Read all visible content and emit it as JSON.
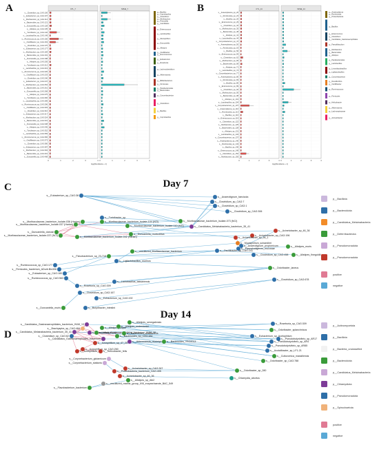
{
  "figure": {
    "panels": [
      {
        "letter": "A"
      },
      {
        "letter": "B"
      },
      {
        "letter": "C",
        "title": "Day 7"
      },
      {
        "letter": "D",
        "title": "Day 14"
      }
    ]
  },
  "panel_a": {
    "strip_left": "CTL_7",
    "strip_right": "SPHE_7",
    "xlabel": "log(Abundance + 1)",
    "legend": [
      "g__Bacillus",
      "g__Coprobacillus",
      "g__Clostridium",
      "g__Muribaculum",
      "g__Prevotella",
      "g__Candidatus",
      "g__Enterococcus",
      "g__Lactobacillus",
      "g__Mucispirillum",
      "g__Duncaniella",
      "g__Alistipes",
      "g__Oscillibacter",
      "g__Ruminococcus",
      "g__Eubacterium",
      "g__Roseburia",
      "g__Lachnoclostridium",
      "g__Akkermansia",
      "g__Bifidobacterium",
      "g__Firmicutes",
      "g__Parabacteroides",
      "g__Bacteroides",
      "g__Corynebacterium",
      "g__Clostridium"
    ]
  },
  "panel_b": {
    "strip_left": "CTL_14",
    "strip_right": "SPHE_14",
    "xlabel": "log(Abundance + 1)",
    "legend": [
      "g__Anaeroplasma",
      "g__Romboutsia",
      "g__Proteobacteria",
      "g__Bacillus",
      "g__Enterococcus",
      "g__Clostridium",
      "g__Candidatus_Gastranaerophilales",
      "g__Faecalibaculum",
      "g__Muribaculum",
      "g__Bacteroides",
      "g__Alistipes",
      "g__Parabacteroides",
      "g__Lactobacillus",
      "g__Limosilactobacillus",
      "g__Ligilactobacillus",
      "g__Corynebacterium",
      "g__Desulfovibrio",
      "g__Oscillibacter",
      "g__Ruminococcus",
      "g__Firmicutes",
      "g__Helicobacter",
      "g__Akkermansia",
      "g__Lachnospiraceae",
      "g__Acinetobacter"
    ]
  },
  "panel_c": {
    "nodes": [
      {
        "id": "c1",
        "label": "s__Eubacterium_sp_CAG:38",
        "phylum": "Firmicutes"
      },
      {
        "id": "c2",
        "label": "s__Anaerotignum_faecicola",
        "phylum": "Firmicutes"
      },
      {
        "id": "c3",
        "label": "s__Clostridium_sp_CAG:7",
        "phylum": "Bacillota"
      },
      {
        "id": "c4",
        "label": "s__Clostridium_sp_CAG:1",
        "phylum": "Bacillota"
      },
      {
        "id": "c5",
        "label": "s__Clostridium_sp_CAG:306",
        "phylum": "Bacillota"
      },
      {
        "id": "c6",
        "label": "s__Turicibacter_sp.",
        "phylum": "Bacillota"
      },
      {
        "id": "c7",
        "label": "s__Muribaculaceae_bacterium_Isolate-036 (Harlan)",
        "phylum": "Bacteroidota"
      },
      {
        "id": "c8",
        "label": "s__Muribaculaceae_bacterium_Isolate-104 (HZI)",
        "phylum": "Bacteroidota"
      },
      {
        "id": "c9",
        "label": "s__Muribaculaceae_bacterium_Isolate-037 (Harlan)",
        "phylum": "Bacteroidota"
      },
      {
        "id": "c10",
        "label": "s__Muribaculaceae_bacterium_Isolate-073 (NCI)",
        "phylum": "Bacteroidota"
      },
      {
        "id": "c11",
        "label": "s__Muribaculaceae_bacterium_Isolate-110 (HZI)",
        "phylum": "Bacteroidota"
      },
      {
        "id": "c12",
        "label": "s__Muribaculaceae_bacterium_Isolate-037 (NCI)",
        "phylum": "Bacteroidota"
      },
      {
        "id": "c13",
        "label": "s__Duncaniella_dubosii",
        "phylum": "Bacteroidota"
      },
      {
        "id": "c14",
        "label": "s__Duncaniella_muricolitica",
        "phylum": "Bacteroidota"
      },
      {
        "id": "c15",
        "label": "s__Muribaculaceae_bacterium_Isolate-042 (Harlan)",
        "phylum": "Bacteroidota"
      },
      {
        "id": "c16",
        "label": "s__Candidatus_Melainabacteria_bacterium_35_41",
        "phylum": "Candidatus_Melainabacteria"
      },
      {
        "id": "c17",
        "label": "s__Acinetobacter_sp_46_36",
        "phylum": "Pseudomonadota"
      },
      {
        "id": "c18",
        "label": "s__Acinetobacter_sp_CAG:196",
        "phylum": "Pseudomonadota"
      },
      {
        "id": "c19",
        "label": "s__Acinetobacter_sp_56_1",
        "phylum": "Pseudomonadota"
      },
      {
        "id": "c20",
        "label": "s__Mucispirillum_schaedleri",
        "phylum": "Deferribacterota"
      },
      {
        "id": "c21",
        "label": "s__Anaerotignum_propionicum",
        "phylum": "Bacillota"
      },
      {
        "id": "c22",
        "label": "s__Alistipes_muris",
        "phylum": "Bacteroidota"
      },
      {
        "id": "c23",
        "label": "s__Paenalcaligenes_mucosae",
        "phylum": "Bacillota"
      },
      {
        "id": "c24",
        "label": "s__uncultured_Muribaculaceae_bacterium",
        "phylum": "Bacteroidota"
      },
      {
        "id": "c25",
        "label": "s__Oscillibacter_sp_CAG:241",
        "phylum": "Bacillota"
      },
      {
        "id": "c26",
        "label": "s__Clostridium_sp_CAG:458",
        "phylum": "Bacillota"
      },
      {
        "id": "c27",
        "label": "s__Alistipes_finegoldii",
        "phylum": "Bacteroidota"
      },
      {
        "id": "c28",
        "label": "s__Flavobacterium_sp_23-718",
        "phylum": "Bacteroidota"
      },
      {
        "id": "c29",
        "label": "s__Ligilactobacillus_murinus",
        "phylum": "Bacillota"
      },
      {
        "id": "c30",
        "label": "s__Ruminococcus_sp_CAG:177",
        "phylum": "Bacillota"
      },
      {
        "id": "c31",
        "label": "s__Firmicutes_bacterium_ADurb.Bin306",
        "phylum": "Bacillota"
      },
      {
        "id": "c32",
        "label": "s__Eubacterium_sp_CAG:180",
        "phylum": "Bacillota"
      },
      {
        "id": "c33",
        "label": "s__Ruminococcus_sp_CAG:563",
        "phylum": "Bacillota"
      },
      {
        "id": "c34",
        "label": "s__Lactobacillus_taiwanensis",
        "phylum": "Bacillota"
      },
      {
        "id": "c35",
        "label": "s__Roseburia_sp_CAG:309",
        "phylum": "Bacillota"
      },
      {
        "id": "c36",
        "label": "s__Clostridium_sp_CAG:167",
        "phylum": "Bacillota"
      },
      {
        "id": "c37",
        "label": "s__Eubacterium_sp_CAG:192",
        "phylum": "Bacillota"
      },
      {
        "id": "c38",
        "label": "s__Duncaniella_muris",
        "phylum": "Bacteroidota"
      },
      {
        "id": "c39",
        "label": "s__Butyribacter_intestini",
        "phylum": "Bacillota"
      },
      {
        "id": "c40",
        "label": "s__Odoribacter_laneus",
        "phylum": "Bacteroidota"
      },
      {
        "id": "c41",
        "label": "s__Clostridium_sp_CAG:678",
        "phylum": "Bacillota"
      }
    ],
    "legend": {
      "phyla": [
        "p__Bacillota",
        "p__Bacteroidota",
        "p__Candidatus_Melainabacteria",
        "p__Deferribacterota",
        "p__Pseudomonadota",
        "p__Pseudomonadota"
      ],
      "correlation": [
        "positive",
        "negative"
      ]
    }
  },
  "panel_d": {
    "nodes": [
      {
        "id": "d1",
        "label": "s__Candidatus_Gastranaerophilales_bacterium_HUM_13",
        "phylum": "Candidatus_Melainabacteria"
      },
      {
        "id": "d2",
        "label": "s__Brachyspira_sp_CAG:484",
        "phylum": "Spirochaetota"
      },
      {
        "id": "d3",
        "label": "s__Candidatus_Melainabacteria_bacterium_35_41",
        "phylum": "Candidatus_Melainabacteria"
      },
      {
        "id": "d4",
        "label": "s__Clostridium_sp_CAG:62",
        "phylum": "Bacillota"
      },
      {
        "id": "d5",
        "label": "s__Candidatus_Gastranaerophilales_bacterium_HUM_20",
        "phylum": "Candidatus_Melainabacteria"
      },
      {
        "id": "d6",
        "label": "s__Candidatus_Gastranaerophilales_bacterium",
        "phylum": "Candidatus_Melainabacteria"
      },
      {
        "id": "d7",
        "label": "s__Alistipes_sp.",
        "phylum": "Bacteroidota"
      },
      {
        "id": "d8",
        "label": "s__Alistipes_dispar",
        "phylum": "Bacteroidota"
      },
      {
        "id": "d9",
        "label": "s__Alistipes_onderdonkii",
        "phylum": "Bacteroidota"
      },
      {
        "id": "d10",
        "label": "s__Alistipes_senegalensis",
        "phylum": "Bacteroidota"
      },
      {
        "id": "d11",
        "label": "s__Bacteroides_acidifaciens",
        "phylum": "Bacteroidota"
      },
      {
        "id": "d12",
        "label": "s__Azospirillum_sp_47_25",
        "phylum": "Pseudomonadota"
      },
      {
        "id": "d13",
        "label": "s__Azospirillum_sp.",
        "phylum": "Pseudomonadota"
      },
      {
        "id": "d14",
        "label": "s__Bacteroides_sp_CAG:484",
        "phylum": "Bacteroidota"
      },
      {
        "id": "d15",
        "label": "s__Akkermansia_muciniphila",
        "phylum": "Verrucomicrobiota"
      },
      {
        "id": "d16",
        "label": "s__Corynebacterium_glutamicum",
        "phylum": "Actinomycetota"
      },
      {
        "id": "d17",
        "label": "s__Corynebacterium_stationis",
        "phylum": "Actinomycetota"
      },
      {
        "id": "d18",
        "label": "s__Acinetobacter_sp_CAG:267",
        "phylum": "Pseudomonadota"
      },
      {
        "id": "d19",
        "label": "s__Proteobacteria_bacterium_CAG:495",
        "phylum": "Pseudomonadota"
      },
      {
        "id": "d20",
        "label": "s__Acinetobacter_sp_46_36",
        "phylum": "Pseudomonadota"
      },
      {
        "id": "d21",
        "label": "s__Alistipes_sp_Alb2",
        "phylum": "Bacteroidota"
      },
      {
        "id": "d22",
        "label": "s__Flavobacterium_bacterium",
        "phylum": "Bacteroidota"
      },
      {
        "id": "d23",
        "label": "s__uncultured_marine_group_II/III_euryarchaeote_BAC_549",
        "phylum": "Euryarchaeota"
      },
      {
        "id": "d24",
        "label": "s__Roseburia_sp_CAG:309",
        "phylum": "Bacillota"
      },
      {
        "id": "d25",
        "label": "s__Odoribacter_splanchnicus",
        "phylum": "Bacteroidota"
      },
      {
        "id": "d26",
        "label": "s__Eubacterium_sp_Acetophilum",
        "phylum": "Bacillota"
      },
      {
        "id": "d27",
        "label": "s__Pseudobutyrivibrio_sp_AR17",
        "phylum": "Bacillota"
      },
      {
        "id": "d28",
        "label": "s__Pseudobutyrivibrio_sp_AR4",
        "phylum": "Bacillota"
      },
      {
        "id": "d29",
        "label": "s__Pseudobutyrivibrio_sp_AR85",
        "phylum": "Bacillota"
      },
      {
        "id": "d30",
        "label": "s__Acutalibacter_sp_LF1-21",
        "phylum": "Bacillota"
      },
      {
        "id": "d31",
        "label": "s__Culturomica_massiliensis",
        "phylum": "Bacteroidota"
      },
      {
        "id": "d32",
        "label": "s__Odoribacter_sp_CAG:788",
        "phylum": "Bacteroidota"
      },
      {
        "id": "d33",
        "label": "s__Odoribacter_sp_280",
        "phylum": "Bacteroidota"
      },
      {
        "id": "d34",
        "label": "s__Chlamydia_abortus",
        "phylum": "Chlamydiota"
      }
    ],
    "legend": {
      "phyla": [
        "p__Actinomycetota",
        "p__Bacillota",
        "p__Bacteria_unclassified",
        "p__Bacteroidota",
        "p__Candidatus_Melainabacteria",
        "p__Chlamydiota",
        "p__Pseudomonadota",
        "p__Spirochaetota"
      ],
      "correlation": [
        "positive",
        "negative"
      ]
    }
  },
  "colors": {
    "ctl_box": "#d9534f",
    "sphe_box": "#2bb3b8",
    "edge_negative": "#5aa9d6",
    "edge_positive": "#e07a94",
    "node_bacillota": "#2e6fa8",
    "node_bacteroidota": "#3a9b3a",
    "node_pseudomonadota": "#c0392b",
    "node_actinomycetota": "#c9a8d6",
    "node_candidatus": "#7d3c98",
    "node_deferribacterota": "#e67e22",
    "node_spirochaetota": "#f0b27a",
    "node_chlamydiota": "#1f9e8a"
  }
}
